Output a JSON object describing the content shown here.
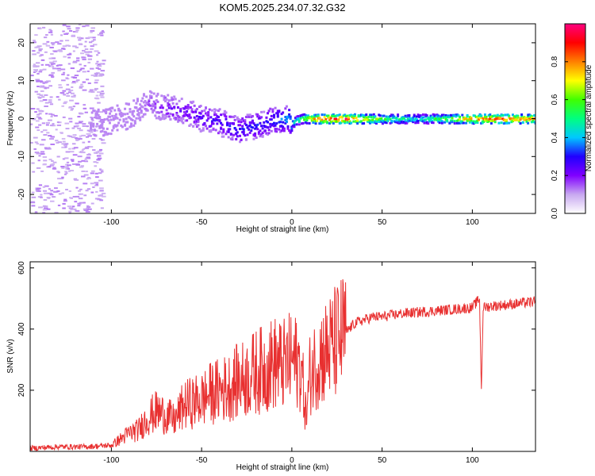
{
  "title": "KOM5.2025.234.07.32.G32",
  "chart_data": [
    {
      "type": "heatmap",
      "panel": "spectrogram",
      "xlabel": "Height of straight line (km)",
      "ylabel": "Frequency (Hz)",
      "xlim": [
        -145,
        135
      ],
      "ylim": [
        -25,
        25
      ],
      "xticks": [
        -100,
        -50,
        0,
        50,
        100
      ],
      "yticks": [
        -20,
        -10,
        0,
        10,
        20
      ],
      "colorbar": {
        "label": "Normalized spectral amplitude",
        "range": [
          0,
          1
        ],
        "ticks": [
          0.0,
          0.2,
          0.4,
          0.6,
          0.8
        ],
        "colors": [
          "#ffffff",
          "#c8a8f0",
          "#8000ff",
          "#2000ff",
          "#00c8ff",
          "#00ff80",
          "#40ff00",
          "#ffff00",
          "#ff8000",
          "#ff0000",
          "#ff0080"
        ]
      },
      "trace": {
        "x": [
          -105,
          -90,
          -80,
          -70,
          -60,
          -50,
          -40,
          -30,
          -22,
          -15,
          -8,
          -3,
          0,
          5,
          15,
          30,
          50,
          70,
          90,
          110,
          135
        ],
        "frequency": [
          -1,
          1,
          4,
          3,
          2,
          0,
          -1,
          -3,
          -2,
          -1,
          0,
          0,
          -1,
          0,
          0,
          0,
          0,
          0,
          0,
          0,
          0
        ],
        "amplitude": [
          0.05,
          0.08,
          0.15,
          0.2,
          0.22,
          0.25,
          0.28,
          0.3,
          0.3,
          0.3,
          0.35,
          0.4,
          0.45,
          0.6,
          0.9,
          0.95,
          0.6,
          0.45,
          0.7,
          0.9,
          0.8
        ]
      }
    },
    {
      "type": "line",
      "panel": "snr",
      "xlabel": "Height of straight line (km)",
      "ylabel": "SNR (v/v)",
      "xlim": [
        -145,
        135
      ],
      "ylim": [
        0,
        620
      ],
      "xticks": [
        -100,
        -50,
        0,
        50,
        100
      ],
      "yticks": [
        200,
        400,
        600
      ],
      "series": [
        {
          "color": "#e83030",
          "x": [
            -145,
            -130,
            -115,
            -100,
            -95,
            -90,
            -85,
            -80,
            -75,
            -70,
            -65,
            -60,
            -55,
            -50,
            -45,
            -40,
            -35,
            -30,
            -25,
            -20,
            -15,
            -10,
            -5,
            0,
            5,
            8,
            10,
            15,
            20,
            25,
            30,
            35,
            40,
            45,
            50,
            60,
            70,
            80,
            90,
            100,
            104,
            105,
            106,
            110,
            120,
            135
          ],
          "y": [
            10,
            15,
            15,
            20,
            40,
            60,
            70,
            110,
            130,
            120,
            100,
            150,
            160,
            170,
            190,
            200,
            210,
            230,
            240,
            260,
            270,
            290,
            280,
            300,
            280,
            110,
            250,
            310,
            330,
            360,
            390,
            420,
            430,
            440,
            440,
            450,
            455,
            460,
            465,
            470,
            500,
            200,
            470,
            475,
            480,
            490
          ]
        }
      ]
    }
  ]
}
